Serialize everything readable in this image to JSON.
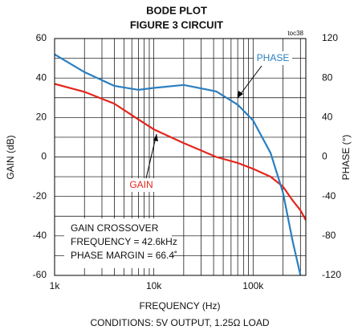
{
  "chart_data": {
    "type": "line",
    "title": "BODE PLOT",
    "subtitle": "FIGURE 3 CIRCUIT",
    "tag": "toc38",
    "xlabel": "FREQUENCY (Hz)",
    "ylabel": "GAIN (dB)",
    "y2label": "PHASE (°)",
    "note": "CONDITIONS: 5V OUTPUT, 1.25Ω LOAD",
    "annotations": [
      "PHASE",
      "GAIN"
    ],
    "box_lines": [
      "GAIN CROSSOVER",
      "FREQUENCY = 42.6kHz",
      "PHASE MARGIN = 66.4˚"
    ],
    "log_x": true,
    "grid": true,
    "x": [
      1000,
      2000,
      4000,
      7000,
      10000,
      20000,
      42600,
      70000,
      100000,
      150000,
      200000,
      250000,
      300000,
      340000
    ],
    "series": [
      {
        "name": "GAIN",
        "color": "#e4261c",
        "values": [
          37,
          33,
          27,
          19,
          14,
          7,
          0,
          -3,
          -6,
          -10,
          -15,
          -22,
          -27,
          -32
        ]
      },
      {
        "name": "PHASE",
        "color": "#2a7fc1",
        "axis": "y2",
        "values": [
          104,
          86,
          72,
          68,
          70,
          73,
          66.4,
          53,
          37,
          4,
          -36,
          -85,
          -120,
          -150
        ]
      }
    ],
    "xlim": [
      1000,
      340000
    ],
    "xticks": [
      {
        "value": 1000,
        "label": "1k"
      },
      {
        "value": 10000,
        "label": "10k"
      },
      {
        "value": 100000,
        "label": "100k"
      }
    ],
    "xminorticks": [
      2000,
      3000,
      4000,
      5000,
      6000,
      7000,
      8000,
      9000,
      20000,
      30000,
      40000,
      50000,
      60000,
      70000,
      80000,
      90000,
      200000,
      300000
    ],
    "ylim": [
      -60,
      60
    ],
    "yticks": [
      -60,
      -40,
      -20,
      0,
      20,
      40,
      60
    ],
    "yminorticks": [
      -50,
      -30,
      -10,
      10,
      30,
      50
    ],
    "y2lim": [
      -120,
      120
    ],
    "y2ticks": [
      -120,
      -80,
      -40,
      0,
      40,
      80,
      120
    ]
  }
}
